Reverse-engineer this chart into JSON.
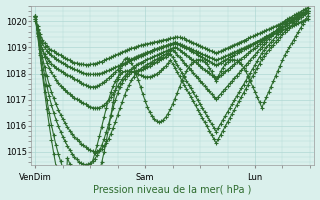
{
  "xlabel": "Pression niveau de la mer( hPa )",
  "bg_color": "#daf0ec",
  "grid_color": "#b0d8d4",
  "line_color": "#2d6b2d",
  "ylim": [
    1014.5,
    1020.6
  ],
  "yticks": [
    1015,
    1016,
    1017,
    1018,
    1019,
    1020
  ],
  "xtick_labels": [
    "VenDim",
    "Sam",
    "Lun"
  ],
  "xtick_positions": [
    0,
    48,
    96
  ],
  "total_points": 120,
  "series": [
    [
      1020.2,
      1019.8,
      1019.5,
      1019.3,
      1019.15,
      1019.05,
      1018.95,
      1018.9,
      1018.85,
      1018.8,
      1018.75,
      1018.7,
      1018.65,
      1018.6,
      1018.55,
      1018.5,
      1018.45,
      1018.42,
      1018.4,
      1018.38,
      1018.36,
      1018.35,
      1018.34,
      1018.34,
      1018.35,
      1018.36,
      1018.38,
      1018.4,
      1018.43,
      1018.46,
      1018.5,
      1018.54,
      1018.58,
      1018.62,
      1018.66,
      1018.7,
      1018.74,
      1018.78,
      1018.82,
      1018.86,
      1018.9,
      1018.93,
      1018.96,
      1018.99,
      1019.02,
      1019.05,
      1019.08,
      1019.1,
      1019.12,
      1019.14,
      1019.16,
      1019.18,
      1019.2,
      1019.22,
      1019.24,
      1019.26,
      1019.28,
      1019.3,
      1019.32,
      1019.34,
      1019.36,
      1019.38,
      1019.4,
      1019.38,
      1019.36,
      1019.34,
      1019.3,
      1019.26,
      1019.22,
      1019.18,
      1019.14,
      1019.1,
      1019.06,
      1019.02,
      1018.98,
      1018.94,
      1018.9,
      1018.86,
      1018.82,
      1018.78,
      1018.82,
      1018.86,
      1018.9,
      1018.94,
      1018.98,
      1019.02,
      1019.06,
      1019.1,
      1019.14,
      1019.18,
      1019.22,
      1019.26,
      1019.3,
      1019.34,
      1019.38,
      1019.42,
      1019.46,
      1019.5,
      1019.54,
      1019.58,
      1019.62,
      1019.66,
      1019.7,
      1019.74,
      1019.78,
      1019.82,
      1019.86,
      1019.9,
      1019.94,
      1019.98,
      1020.02,
      1020.06,
      1020.1,
      1020.14,
      1020.18,
      1020.22,
      1020.26,
      1020.3,
      1020.34,
      1020.38
    ],
    [
      1020.1,
      1019.7,
      1019.4,
      1019.15,
      1019.0,
      1018.88,
      1018.78,
      1018.7,
      1018.62,
      1018.56,
      1018.5,
      1018.45,
      1018.4,
      1018.35,
      1018.3,
      1018.25,
      1018.2,
      1018.16,
      1018.12,
      1018.08,
      1018.05,
      1018.02,
      1018.0,
      1017.98,
      1017.97,
      1017.97,
      1017.97,
      1017.98,
      1018.0,
      1018.02,
      1018.05,
      1018.08,
      1018.12,
      1018.16,
      1018.2,
      1018.24,
      1018.28,
      1018.32,
      1018.36,
      1018.4,
      1018.44,
      1018.48,
      1018.52,
      1018.56,
      1018.6,
      1018.64,
      1018.68,
      1018.72,
      1018.76,
      1018.8,
      1018.84,
      1018.88,
      1018.92,
      1018.95,
      1018.98,
      1019.01,
      1019.04,
      1019.07,
      1019.1,
      1019.13,
      1019.16,
      1019.19,
      1019.16,
      1019.13,
      1019.1,
      1019.06,
      1019.02,
      1018.98,
      1018.94,
      1018.9,
      1018.86,
      1018.82,
      1018.78,
      1018.74,
      1018.7,
      1018.66,
      1018.62,
      1018.58,
      1018.54,
      1018.5,
      1018.54,
      1018.58,
      1018.62,
      1018.66,
      1018.7,
      1018.74,
      1018.78,
      1018.82,
      1018.86,
      1018.9,
      1018.94,
      1018.98,
      1019.02,
      1019.06,
      1019.1,
      1019.14,
      1019.18,
      1019.22,
      1019.26,
      1019.3,
      1019.34,
      1019.38,
      1019.42,
      1019.46,
      1019.5,
      1019.54,
      1019.58,
      1019.62,
      1019.66,
      1019.7,
      1019.74,
      1019.78,
      1019.82,
      1019.86,
      1019.9,
      1019.94,
      1019.98,
      1020.02,
      1020.06,
      1020.1
    ],
    [
      1020.0,
      1019.55,
      1019.2,
      1018.95,
      1018.75,
      1018.6,
      1018.48,
      1018.38,
      1018.3,
      1018.22,
      1018.16,
      1018.1,
      1018.05,
      1018.0,
      1017.95,
      1017.9,
      1017.85,
      1017.8,
      1017.75,
      1017.7,
      1017.65,
      1017.6,
      1017.56,
      1017.52,
      1017.5,
      1017.49,
      1017.5,
      1017.52,
      1017.56,
      1017.62,
      1017.68,
      1017.75,
      1017.83,
      1017.91,
      1017.99,
      1018.07,
      1018.15,
      1018.23,
      1018.31,
      1018.38,
      1018.44,
      1018.5,
      1018.55,
      1018.6,
      1018.64,
      1018.68,
      1018.72,
      1018.75,
      1018.78,
      1018.81,
      1018.84,
      1018.87,
      1018.9,
      1018.93,
      1018.96,
      1018.99,
      1019.02,
      1019.05,
      1019.08,
      1019.11,
      1019.14,
      1019.17,
      1019.14,
      1019.1,
      1019.06,
      1019.02,
      1018.97,
      1018.92,
      1018.87,
      1018.82,
      1018.77,
      1018.72,
      1018.67,
      1018.62,
      1018.57,
      1018.52,
      1018.47,
      1018.42,
      1018.37,
      1018.32,
      1018.37,
      1018.42,
      1018.47,
      1018.52,
      1018.57,
      1018.62,
      1018.67,
      1018.72,
      1018.77,
      1018.82,
      1018.87,
      1018.92,
      1018.97,
      1019.02,
      1019.07,
      1019.12,
      1019.17,
      1019.22,
      1019.27,
      1019.32,
      1019.37,
      1019.42,
      1019.47,
      1019.52,
      1019.57,
      1019.62,
      1019.67,
      1019.72,
      1019.77,
      1019.82,
      1019.87,
      1019.92,
      1019.97,
      1020.02,
      1020.07,
      1020.12,
      1020.17,
      1020.22,
      1020.27,
      1020.32
    ],
    [
      1020.1,
      1019.65,
      1019.25,
      1018.92,
      1018.65,
      1018.42,
      1018.22,
      1018.05,
      1017.9,
      1017.76,
      1017.64,
      1017.54,
      1017.44,
      1017.36,
      1017.28,
      1017.21,
      1017.14,
      1017.08,
      1017.02,
      1016.97,
      1016.92,
      1016.87,
      1016.82,
      1016.77,
      1016.73,
      1016.7,
      1016.68,
      1016.68,
      1016.7,
      1016.74,
      1016.8,
      1016.88,
      1016.98,
      1017.1,
      1017.23,
      1017.37,
      1017.51,
      1017.65,
      1017.78,
      1017.9,
      1018.0,
      1018.1,
      1018.18,
      1018.26,
      1018.32,
      1018.38,
      1018.42,
      1018.46,
      1018.5,
      1018.54,
      1018.58,
      1018.62,
      1018.66,
      1018.7,
      1018.74,
      1018.78,
      1018.82,
      1018.86,
      1018.9,
      1018.94,
      1018.98,
      1019.0,
      1018.96,
      1018.9,
      1018.84,
      1018.78,
      1018.71,
      1018.64,
      1018.57,
      1018.5,
      1018.43,
      1018.36,
      1018.29,
      1018.22,
      1018.15,
      1018.08,
      1018.01,
      1017.94,
      1017.87,
      1017.8,
      1017.87,
      1017.94,
      1018.01,
      1018.08,
      1018.15,
      1018.22,
      1018.29,
      1018.36,
      1018.43,
      1018.5,
      1018.57,
      1018.64,
      1018.71,
      1018.78,
      1018.85,
      1018.92,
      1018.99,
      1019.06,
      1019.13,
      1019.2,
      1019.27,
      1019.34,
      1019.41,
      1019.48,
      1019.55,
      1019.62,
      1019.69,
      1019.76,
      1019.83,
      1019.9,
      1019.95,
      1020.0,
      1020.05,
      1020.1,
      1020.15,
      1020.2,
      1020.25,
      1020.3,
      1020.35,
      1020.4
    ],
    [
      1020.15,
      1019.6,
      1019.1,
      1018.65,
      1018.25,
      1017.9,
      1017.58,
      1017.3,
      1017.05,
      1016.82,
      1016.62,
      1016.43,
      1016.26,
      1016.1,
      1015.95,
      1015.82,
      1015.7,
      1015.59,
      1015.49,
      1015.4,
      1015.32,
      1015.25,
      1015.18,
      1015.12,
      1015.07,
      1015.03,
      1015.01,
      1015.02,
      1015.06,
      1015.12,
      1015.22,
      1015.35,
      1015.51,
      1015.7,
      1015.92,
      1016.16,
      1016.42,
      1016.68,
      1016.93,
      1017.17,
      1017.39,
      1017.58,
      1017.74,
      1017.88,
      1018.0,
      1018.1,
      1018.18,
      1018.25,
      1018.3,
      1018.35,
      1018.4,
      1018.45,
      1018.5,
      1018.55,
      1018.6,
      1018.65,
      1018.7,
      1018.75,
      1018.8,
      1018.85,
      1018.9,
      1018.82,
      1018.72,
      1018.62,
      1018.52,
      1018.42,
      1018.32,
      1018.22,
      1018.12,
      1018.02,
      1017.92,
      1017.82,
      1017.72,
      1017.62,
      1017.52,
      1017.42,
      1017.32,
      1017.22,
      1017.12,
      1017.02,
      1017.12,
      1017.22,
      1017.32,
      1017.42,
      1017.52,
      1017.62,
      1017.72,
      1017.82,
      1017.92,
      1018.02,
      1018.12,
      1018.22,
      1018.32,
      1018.42,
      1018.52,
      1018.62,
      1018.72,
      1018.82,
      1018.92,
      1019.02,
      1019.12,
      1019.22,
      1019.32,
      1019.42,
      1019.52,
      1019.62,
      1019.72,
      1019.82,
      1019.92,
      1020.02,
      1020.07,
      1020.12,
      1020.17,
      1020.22,
      1020.27,
      1020.32,
      1020.37,
      1020.42,
      1020.47,
      1020.52
    ],
    [
      1020.2,
      1019.55,
      1018.95,
      1018.42,
      1017.95,
      1017.52,
      1017.14,
      1016.8,
      1016.5,
      1016.24,
      1016.0,
      1015.78,
      1015.58,
      1015.4,
      1015.23,
      1015.08,
      1014.94,
      1014.82,
      1014.72,
      1014.63,
      1014.57,
      1014.53,
      1014.52,
      1014.53,
      1014.57,
      1014.64,
      1014.74,
      1014.87,
      1015.04,
      1015.25,
      1015.49,
      1015.77,
      1016.07,
      1016.39,
      1016.7,
      1016.99,
      1017.25,
      1017.47,
      1017.65,
      1017.8,
      1017.92,
      1018.0,
      1018.05,
      1018.08,
      1018.1,
      1018.12,
      1018.14,
      1018.16,
      1018.2,
      1018.25,
      1018.3,
      1018.35,
      1018.4,
      1018.45,
      1018.5,
      1018.55,
      1018.6,
      1018.65,
      1018.7,
      1018.75,
      1018.62,
      1018.48,
      1018.33,
      1018.18,
      1018.03,
      1017.88,
      1017.73,
      1017.58,
      1017.43,
      1017.28,
      1017.13,
      1016.98,
      1016.83,
      1016.68,
      1016.53,
      1016.38,
      1016.23,
      1016.08,
      1015.93,
      1015.78,
      1015.93,
      1016.08,
      1016.23,
      1016.38,
      1016.53,
      1016.68,
      1016.83,
      1016.98,
      1017.13,
      1017.28,
      1017.43,
      1017.58,
      1017.73,
      1017.88,
      1018.03,
      1018.18,
      1018.33,
      1018.48,
      1018.63,
      1018.78,
      1018.9,
      1019.0,
      1019.1,
      1019.2,
      1019.3,
      1019.4,
      1019.5,
      1019.6,
      1019.7,
      1019.8,
      1019.87,
      1019.94,
      1020.01,
      1020.08,
      1020.15,
      1020.22,
      1020.29,
      1020.36,
      1020.43,
      1020.5
    ],
    [
      1020.2,
      1019.5,
      1018.8,
      1018.15,
      1017.55,
      1017.0,
      1016.5,
      1016.04,
      1015.63,
      1015.26,
      1014.93,
      1014.64,
      1014.39,
      1014.18,
      1014.0,
      1013.86,
      1013.76,
      1013.7,
      1013.68,
      1013.7,
      1013.76,
      1013.86,
      1014.0,
      1014.18,
      1014.4,
      1014.66,
      1014.95,
      1015.27,
      1015.61,
      1015.97,
      1016.33,
      1016.68,
      1017.0,
      1017.28,
      1017.52,
      1017.71,
      1017.86,
      1017.97,
      1018.04,
      1018.08,
      1018.1,
      1018.1,
      1018.08,
      1018.05,
      1018.01,
      1017.97,
      1017.93,
      1017.9,
      1017.88,
      1017.87,
      1017.88,
      1017.9,
      1017.94,
      1017.99,
      1018.05,
      1018.12,
      1018.2,
      1018.29,
      1018.39,
      1018.5,
      1018.38,
      1018.22,
      1018.06,
      1017.9,
      1017.74,
      1017.58,
      1017.42,
      1017.26,
      1017.1,
      1016.94,
      1016.78,
      1016.62,
      1016.46,
      1016.3,
      1016.14,
      1015.98,
      1015.82,
      1015.66,
      1015.5,
      1015.34,
      1015.5,
      1015.66,
      1015.82,
      1015.98,
      1016.14,
      1016.3,
      1016.46,
      1016.62,
      1016.78,
      1016.94,
      1017.1,
      1017.26,
      1017.42,
      1017.58,
      1017.74,
      1017.9,
      1018.06,
      1018.22,
      1018.38,
      1018.54,
      1018.68,
      1018.8,
      1018.9,
      1019.0,
      1019.1,
      1019.2,
      1019.3,
      1019.4,
      1019.5,
      1019.6,
      1019.68,
      1019.76,
      1019.84,
      1019.92,
      1020.0,
      1020.08,
      1020.16,
      1020.24,
      1020.32,
      1020.4
    ],
    [
      1020.2,
      1019.45,
      1018.7,
      1017.98,
      1017.3,
      1016.65,
      1016.04,
      1015.47,
      1014.94,
      1014.46,
      1014.02,
      1013.63,
      1013.3,
      1013.01,
      1014.78,
      1014.55,
      1014.33,
      1014.13,
      1013.95,
      1013.8,
      1013.68,
      1013.59,
      1013.53,
      1013.52,
      1013.56,
      1013.65,
      1013.8,
      1014.0,
      1014.27,
      1014.6,
      1014.99,
      1015.43,
      1015.91,
      1016.41,
      1016.91,
      1017.38,
      1017.8,
      1018.15,
      1018.4,
      1018.55,
      1018.6,
      1018.55,
      1018.42,
      1018.23,
      1018.0,
      1017.74,
      1017.47,
      1017.2,
      1016.95,
      1016.72,
      1016.52,
      1016.36,
      1016.25,
      1016.18,
      1016.15,
      1016.17,
      1016.23,
      1016.33,
      1016.47,
      1016.64,
      1016.83,
      1017.04,
      1017.26,
      1017.48,
      1017.7,
      1017.9,
      1018.08,
      1018.23,
      1018.35,
      1018.44,
      1018.5,
      1018.53,
      1018.53,
      1018.5,
      1018.44,
      1018.35,
      1018.23,
      1018.08,
      1017.9,
      1017.7,
      1017.9,
      1018.08,
      1018.23,
      1018.35,
      1018.44,
      1018.5,
      1018.53,
      1018.53,
      1018.5,
      1018.44,
      1018.35,
      1018.23,
      1018.08,
      1017.9,
      1017.7,
      1017.5,
      1017.3,
      1017.1,
      1016.9,
      1016.7,
      1016.9,
      1017.1,
      1017.3,
      1017.5,
      1017.7,
      1017.9,
      1018.1,
      1018.3,
      1018.5,
      1018.7,
      1018.85,
      1019.0,
      1019.15,
      1019.3,
      1019.45,
      1019.6,
      1019.75,
      1019.9,
      1020.05,
      1020.2
    ]
  ]
}
